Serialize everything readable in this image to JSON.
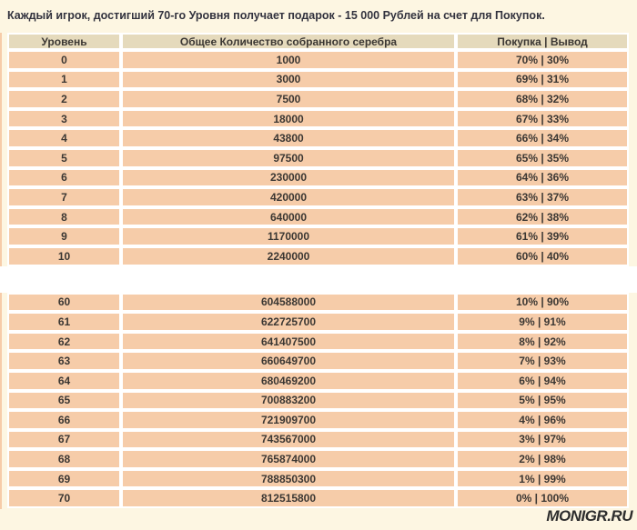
{
  "colors": {
    "background": "#fdf6e2",
    "row": "#f6cca9",
    "header_row": "#e5dabc",
    "separator": "#ffffff",
    "cell_text": "#3b3733",
    "title_text": "#32323e",
    "watermark_text": "#2d2d2d",
    "gap": "#ffffff"
  },
  "page": {
    "title": "Каждый игрок, достигший 70-го Уровня получает подарок - 15 000 Рублей на счет для Покупок.",
    "watermark": "MONIGR.RU"
  },
  "table": {
    "headers": [
      "Уровень",
      "Общее Количество собранного серебра",
      "Покупка | Вывод"
    ],
    "rows_low": [
      {
        "level": "0",
        "silver": "1000",
        "split": "70% | 30%"
      },
      {
        "level": "1",
        "silver": "3000",
        "split": "69% | 31%"
      },
      {
        "level": "2",
        "silver": "7500",
        "split": "68% | 32%"
      },
      {
        "level": "3",
        "silver": "18000",
        "split": "67% | 33%"
      },
      {
        "level": "4",
        "silver": "43800",
        "split": "66% | 34%"
      },
      {
        "level": "5",
        "silver": "97500",
        "split": "65% | 35%"
      },
      {
        "level": "6",
        "silver": "230000",
        "split": "64% | 36%"
      },
      {
        "level": "7",
        "silver": "420000",
        "split": "63% | 37%"
      },
      {
        "level": "8",
        "silver": "640000",
        "split": "62% | 38%"
      },
      {
        "level": "9",
        "silver": "1170000",
        "split": "61% | 39%"
      },
      {
        "level": "10",
        "silver": "2240000",
        "split": "60% | 40%"
      }
    ],
    "rows_high": [
      {
        "level": "60",
        "silver": "604588000",
        "split": "10% | 90%"
      },
      {
        "level": "61",
        "silver": "622725700",
        "split": "9% | 91%"
      },
      {
        "level": "62",
        "silver": "641407500",
        "split": "8% | 92%"
      },
      {
        "level": "63",
        "silver": "660649700",
        "split": "7% | 93%"
      },
      {
        "level": "64",
        "silver": "680469200",
        "split": "6% | 94%"
      },
      {
        "level": "65",
        "silver": "700883200",
        "split": "5% | 95%"
      },
      {
        "level": "66",
        "silver": "721909700",
        "split": "4% | 96%"
      },
      {
        "level": "67",
        "silver": "743567000",
        "split": "3% | 97%"
      },
      {
        "level": "68",
        "silver": "765874000",
        "split": "2% | 98%"
      },
      {
        "level": "69",
        "silver": "788850300",
        "split": "1% | 99%"
      },
      {
        "level": "70",
        "silver": "812515800",
        "split": "0% | 100%"
      }
    ]
  }
}
